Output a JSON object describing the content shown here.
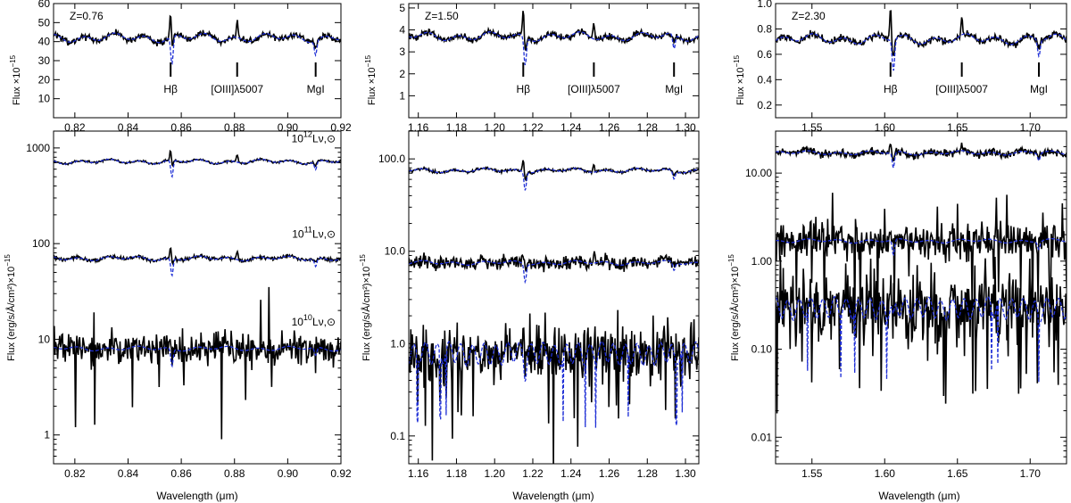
{
  "figure": {
    "xlabel": "Wavelength (μm)",
    "top_ylabel": "Flux ×10",
    "bottom_ylabel": "Flux (erg/s/Å/cm²)×10",
    "exponent": "−15"
  },
  "lines": {
    "hbeta": "Hβ",
    "oiii": "[OIII]λ5007",
    "mgi": "MgI"
  },
  "colors": {
    "observed": "#000000",
    "model": "#1f2fd6"
  },
  "chart_data": [
    {
      "type": "line",
      "panel": "top-left",
      "redshift_label": "Z=0.76",
      "xlim": [
        0.812,
        0.92
      ],
      "ylim": [
        0,
        60
      ],
      "yscale": "linear",
      "xticks": [
        0.82,
        0.84,
        0.86,
        0.88,
        0.9,
        0.92
      ],
      "xticklabels": [
        "0.82",
        "0.84",
        "0.86",
        "0.88",
        "0.90",
        "0.92"
      ],
      "yticks": [
        10,
        20,
        30,
        40,
        50,
        60
      ],
      "yticklabels": [
        "10",
        "20",
        "30",
        "40",
        "50",
        "60"
      ],
      "line_markers": [
        {
          "x": 0.856
        },
        {
          "x": 0.881
        },
        {
          "x": 0.9105
        }
      ],
      "series": [
        {
          "level": 42,
          "noise": 1.2,
          "emission": [
            0.856,
            0.881
          ],
          "emission_amp": 10,
          "absorption": [
            0.8565,
            0.9105
          ],
          "absorption_amp": 12
        }
      ]
    },
    {
      "type": "line",
      "panel": "top-middle",
      "redshift_label": "Z=1.50",
      "xlim": [
        1.155,
        1.307
      ],
      "ylim": [
        0,
        5.2
      ],
      "yscale": "linear",
      "xticks": [
        1.16,
        1.18,
        1.2,
        1.22,
        1.24,
        1.26,
        1.28,
        1.3
      ],
      "xticklabels": [
        "1.16",
        "1.18",
        "1.20",
        "1.22",
        "1.24",
        "1.26",
        "1.28",
        "1.30"
      ],
      "yticks": [
        1,
        2,
        3,
        4,
        5
      ],
      "yticklabels": [
        "1",
        "2",
        "3",
        "4",
        "5"
      ],
      "line_markers": [
        {
          "x": 1.215
        },
        {
          "x": 1.252
        },
        {
          "x": 1.294
        }
      ],
      "series": [
        {
          "level": 3.7,
          "noise": 0.1,
          "emission": [
            1.215,
            1.252
          ],
          "emission_amp": 0.6,
          "absorption": [
            1.216,
            1.294
          ],
          "absorption_amp": 0.9
        }
      ]
    },
    {
      "type": "line",
      "panel": "top-right",
      "redshift_label": "Z=2.30",
      "xlim": [
        1.525,
        1.725
      ],
      "ylim": [
        0.1,
        1.0
      ],
      "yscale": "linear",
      "xticks": [
        1.55,
        1.6,
        1.65,
        1.7
      ],
      "xticklabels": [
        "1.55",
        "1.60",
        "1.65",
        "1.70"
      ],
      "yticks": [
        0.2,
        0.4,
        0.6,
        0.8,
        1.0
      ],
      "yticklabels": [
        "0.2",
        "0.4",
        "0.6",
        "0.8",
        "1.0"
      ],
      "line_markers": [
        {
          "x": 1.604
        },
        {
          "x": 1.653
        },
        {
          "x": 1.706
        }
      ],
      "series": [
        {
          "level": 0.72,
          "noise": 0.02,
          "emission": [
            1.604,
            1.653
          ],
          "emission_amp": 0.1,
          "absorption": [
            1.606,
            1.706
          ],
          "absorption_amp": 0.14
        }
      ]
    },
    {
      "type": "line",
      "panel": "bottom-left",
      "xlim": [
        0.812,
        0.92
      ],
      "ylim": [
        0.5,
        1500
      ],
      "yscale": "log",
      "xticks": [
        0.82,
        0.84,
        0.86,
        0.88,
        0.9,
        0.92
      ],
      "xticklabels": [
        "0.82",
        "0.84",
        "0.86",
        "0.88",
        "0.90",
        "0.92"
      ],
      "yticks": [
        1,
        10,
        100,
        1000
      ],
      "yticklabels": [
        "1",
        "10",
        "100",
        "1000"
      ],
      "annotations": [
        {
          "text": "10",
          "sup": "12",
          "suffix": "Lν,⊙",
          "anchor_y": 1150
        },
        {
          "text": "10",
          "sup": "11",
          "suffix": "Lν,⊙",
          "anchor_y": 115
        },
        {
          "text": "10",
          "sup": "10",
          "suffix": "Lν,⊙",
          "anchor_y": 14
        }
      ],
      "series": [
        {
          "name": "10^12 Lν,⊙",
          "level": 720,
          "noise": 0.03,
          "emission": [
            0.856,
            0.881
          ],
          "absorption": [
            0.8565,
            0.9105
          ]
        },
        {
          "name": "10^11 Lν,⊙",
          "level": 70,
          "noise": 0.05,
          "emission": [
            0.856,
            0.881
          ],
          "absorption": [
            0.8565,
            0.9105
          ]
        },
        {
          "name": "10^10 Lν,⊙",
          "level": 8,
          "noise": 0.45,
          "emission": [
            0.856,
            0.881
          ],
          "absorption": [
            0.8565,
            0.9105
          ]
        }
      ]
    },
    {
      "type": "line",
      "panel": "bottom-middle",
      "xlim": [
        1.155,
        1.307
      ],
      "ylim": [
        0.05,
        200
      ],
      "yscale": "log",
      "xticks": [
        1.16,
        1.18,
        1.2,
        1.22,
        1.24,
        1.26,
        1.28,
        1.3
      ],
      "xticklabels": [
        "1.16",
        "1.18",
        "1.20",
        "1.22",
        "1.24",
        "1.26",
        "1.28",
        "1.30"
      ],
      "yticks": [
        0.1,
        1,
        10,
        100
      ],
      "yticklabels": [
        "0.1",
        "1.0",
        "10.0",
        "100.0"
      ],
      "series": [
        {
          "level": 75,
          "noise": 0.04,
          "emission": [
            1.215,
            1.252
          ],
          "absorption": [
            1.216,
            1.294
          ]
        },
        {
          "level": 7.5,
          "noise": 0.2,
          "emission": [
            1.215,
            1.252
          ],
          "absorption": [
            1.216,
            1.294
          ]
        },
        {
          "level": 0.8,
          "noise": 0.75,
          "emission": [
            1.215,
            1.252
          ],
          "absorption": [
            1.216,
            1.294
          ]
        }
      ]
    },
    {
      "type": "line",
      "panel": "bottom-right",
      "xlim": [
        1.525,
        1.725
      ],
      "ylim": [
        0.005,
        30
      ],
      "yscale": "log",
      "xticks": [
        1.55,
        1.6,
        1.65,
        1.7
      ],
      "xticklabels": [
        "1.55",
        "1.60",
        "1.65",
        "1.70"
      ],
      "yticks": [
        0.01,
        0.1,
        1,
        10
      ],
      "yticklabels": [
        "0.01",
        "0.10",
        "1.00",
        "10.00"
      ],
      "series": [
        {
          "level": 17,
          "noise": 0.12,
          "emission": [
            1.604,
            1.653
          ],
          "absorption": [
            1.606,
            1.706
          ]
        },
        {
          "level": 1.7,
          "noise": 0.55,
          "emission": [
            1.604,
            1.653
          ],
          "absorption": [
            1.606,
            1.706
          ]
        },
        {
          "level": 0.3,
          "noise": 1.0,
          "emission": [
            1.604,
            1.653
          ],
          "absorption": [
            1.606,
            1.706
          ]
        }
      ]
    }
  ]
}
